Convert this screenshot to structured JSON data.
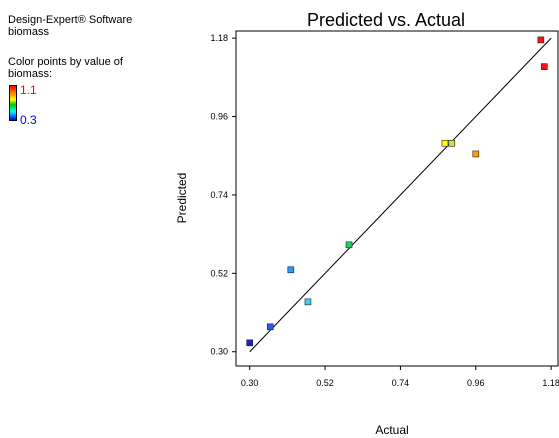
{
  "sidebar": {
    "software": "Design-Expert® Software",
    "response": "biomass",
    "color_by_line1": "Color points by value of",
    "color_by_line2": "biomass:",
    "legend_high": "1.1",
    "legend_low": "0.3",
    "legend_high_color": "#ff0000",
    "legend_low_color": "#0000ff"
  },
  "chart_data": {
    "type": "scatter",
    "title": "Predicted vs. Actual",
    "xlabel": "Actual",
    "ylabel": "Predicted",
    "xlim": [
      0.26,
      1.2
    ],
    "ylim": [
      0.26,
      1.2
    ],
    "xticks": [
      "0.30",
      "0.52",
      "0.74",
      "0.96",
      "1.18"
    ],
    "yticks": [
      "0.30",
      "0.52",
      "0.74",
      "0.96",
      "1.18"
    ],
    "grid": false,
    "legend": "none",
    "reference_line": {
      "x": [
        0.3,
        1.18
      ],
      "y": [
        0.3,
        1.18
      ]
    },
    "points": [
      {
        "x": 0.3,
        "y": 0.325,
        "color": "#1f1fd0"
      },
      {
        "x": 0.36,
        "y": 0.37,
        "color": "#2c5ae6"
      },
      {
        "x": 0.42,
        "y": 0.53,
        "color": "#1fa0ff"
      },
      {
        "x": 0.47,
        "y": 0.44,
        "color": "#33d0f0"
      },
      {
        "x": 0.59,
        "y": 0.6,
        "color": "#20d060"
      },
      {
        "x": 0.87,
        "y": 0.885,
        "color": "#ffff00"
      },
      {
        "x": 0.89,
        "y": 0.885,
        "color": "#c8e640"
      },
      {
        "x": 0.96,
        "y": 0.855,
        "color": "#ffa000"
      },
      {
        "x": 1.15,
        "y": 1.175,
        "color": "#ff1010"
      },
      {
        "x": 1.16,
        "y": 1.1,
        "color": "#ff1010"
      }
    ]
  }
}
